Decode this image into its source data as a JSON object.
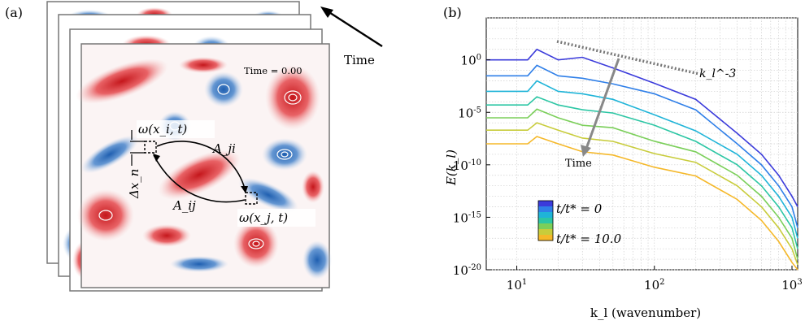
{
  "panel_a": {
    "label": "(a)",
    "time_arrow_label": "Time",
    "time_stamp": "Time = 0.00",
    "omega_i": "ω(x_i, t)",
    "omega_j": "ω(x_j, t)",
    "A_ji": "A_ji",
    "A_ij": "A_ij",
    "delta_x": "Δx_n",
    "colors": {
      "positive": "#d7191c",
      "negative": "#2c6fbb",
      "frame": "#777777"
    }
  },
  "panel_b": {
    "label": "(b)",
    "time_label": "Time",
    "slope_label": "k_l^-3",
    "legend_top": "t/t* = 0",
    "legend_bottom": "t/t* = 10.0",
    "colormap": [
      "#3b3bdb",
      "#2f7fe8",
      "#1fb4d8",
      "#2cc6a4",
      "#7bcf5a",
      "#c8cc3b",
      "#f5b829"
    ]
  },
  "chart_data": {
    "type": "line",
    "title": "",
    "xlabel": "k_l (wavenumber)",
    "ylabel": "E(k_l)",
    "xscale": "log",
    "yscale": "log",
    "xlim": [
      6,
      1100
    ],
    "ylim": [
      1e-20,
      10000.0
    ],
    "x_ticks": [
      "10^1",
      "10^2",
      "10^3"
    ],
    "y_ticks": [
      "10^0",
      "10^-5",
      "10^-10",
      "10^-15",
      "10^-20"
    ],
    "grid": true,
    "legend_placement": "bottom-left (colorbar)",
    "reference_slope": {
      "label": "k_l^-3",
      "exponent": -3,
      "style": "dotted"
    },
    "series": [
      {
        "x": [
          6,
          9,
          12,
          14,
          20,
          30,
          50,
          100,
          200,
          400,
          600,
          800,
          1000,
          1100
        ],
        "y": [
          1.0,
          1.0,
          1.0,
          10.0,
          1.0,
          3.0,
          0.1,
          0.01,
          0.0001,
          1e-07,
          1e-09,
          1e-11,
          1e-13,
          1e-14
        ]
      },
      {
        "x": [
          6,
          9,
          12,
          14,
          20,
          30,
          50,
          100,
          200,
          400,
          600,
          800,
          1000,
          1100
        ],
        "y": [
          0.03,
          0.03,
          0.03,
          0.3,
          0.03,
          0.03,
          0.003,
          0.001,
          1e-05,
          1e-08,
          1e-10,
          1e-12,
          1e-14,
          1e-16
        ]
      },
      {
        "x": [
          6,
          9,
          12,
          14,
          20,
          30,
          50,
          100,
          200,
          400,
          600,
          800,
          1000,
          1100
        ],
        "y": [
          0.001,
          0.001,
          0.001,
          0.01,
          0.001,
          0.001,
          0.0001,
          1e-05,
          1e-07,
          1e-09,
          1e-11,
          1e-13,
          1e-15,
          1e-17
        ]
      },
      {
        "x": [
          6,
          9,
          12,
          14,
          20,
          30,
          50,
          100,
          200,
          400,
          600,
          800,
          1000,
          1100
        ],
        "y": [
          5e-05,
          5e-05,
          5e-05,
          0.0003,
          5e-05,
          3e-05,
          5e-06,
          1e-06,
          1e-08,
          1e-10,
          1e-12,
          1e-14,
          1e-16,
          1e-18
        ]
      },
      {
        "x": [
          6,
          9,
          12,
          14,
          20,
          30,
          50,
          100,
          200,
          400,
          600,
          800,
          1000,
          1100
        ],
        "y": [
          3e-06,
          3e-06,
          3e-06,
          2e-05,
          3e-06,
          1e-06,
          2e-07,
          3e-08,
          1e-09,
          1e-11,
          1e-13,
          1e-15,
          1e-17,
          1e-19
        ]
      },
      {
        "x": [
          6,
          9,
          12,
          14,
          20,
          30,
          50,
          100,
          200,
          400,
          600,
          800,
          1000,
          1100
        ],
        "y": [
          2e-07,
          2e-07,
          2e-07,
          1e-06,
          2e-07,
          6e-08,
          1e-08,
          2e-09,
          1e-10,
          1e-12,
          1e-14,
          1e-16,
          1e-18,
          3e-20
        ]
      },
      {
        "x": [
          6,
          9,
          12,
          14,
          20,
          30,
          50,
          100,
          200,
          400,
          600,
          800,
          1000,
          1100
        ],
        "y": [
          1e-08,
          1e-08,
          1e-08,
          5e-08,
          1e-08,
          3e-09,
          5e-10,
          1e-10,
          5e-12,
          5e-14,
          5e-16,
          5e-18,
          5e-20,
          1e-20
        ]
      }
    ]
  }
}
